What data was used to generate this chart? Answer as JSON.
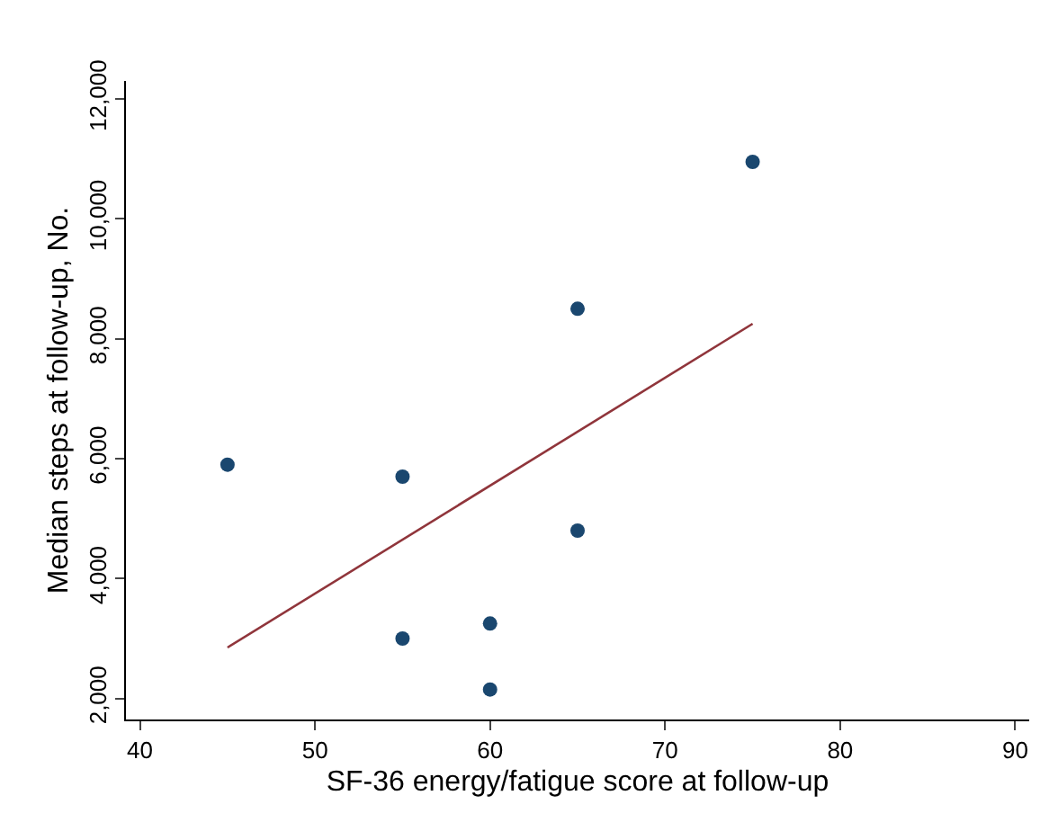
{
  "chart_data": {
    "type": "scatter",
    "xlabel": "SF-36 energy/fatigue score at follow-up",
    "ylabel": "Median steps at follow-up, No.",
    "xlim": [
      39.2,
      90.8
    ],
    "xticks": [
      40,
      50,
      60,
      70,
      80,
      90
    ],
    "ylim": [
      1650,
      12300
    ],
    "yticks": [
      {
        "value": 2000,
        "label": "2,000"
      },
      {
        "value": 4000,
        "label": "4,000"
      },
      {
        "value": 6000,
        "label": "6,000"
      },
      {
        "value": 8000,
        "label": "8,000"
      },
      {
        "value": 10000,
        "label": "10,000"
      },
      {
        "value": 12000,
        "label": "12,000"
      }
    ],
    "grid": false,
    "series": [
      {
        "marker": "circle",
        "color": "#1a476f",
        "x": [
          45,
          55,
          55,
          60,
          60,
          65,
          65,
          75
        ],
        "values": [
          5900,
          5700,
          3000,
          3250,
          2150,
          4800,
          8500,
          10950
        ]
      },
      {
        "type": "line",
        "color": "#90353b",
        "line_style": "solid",
        "x": [
          45,
          75
        ],
        "values": [
          2850,
          8250
        ]
      }
    ]
  }
}
